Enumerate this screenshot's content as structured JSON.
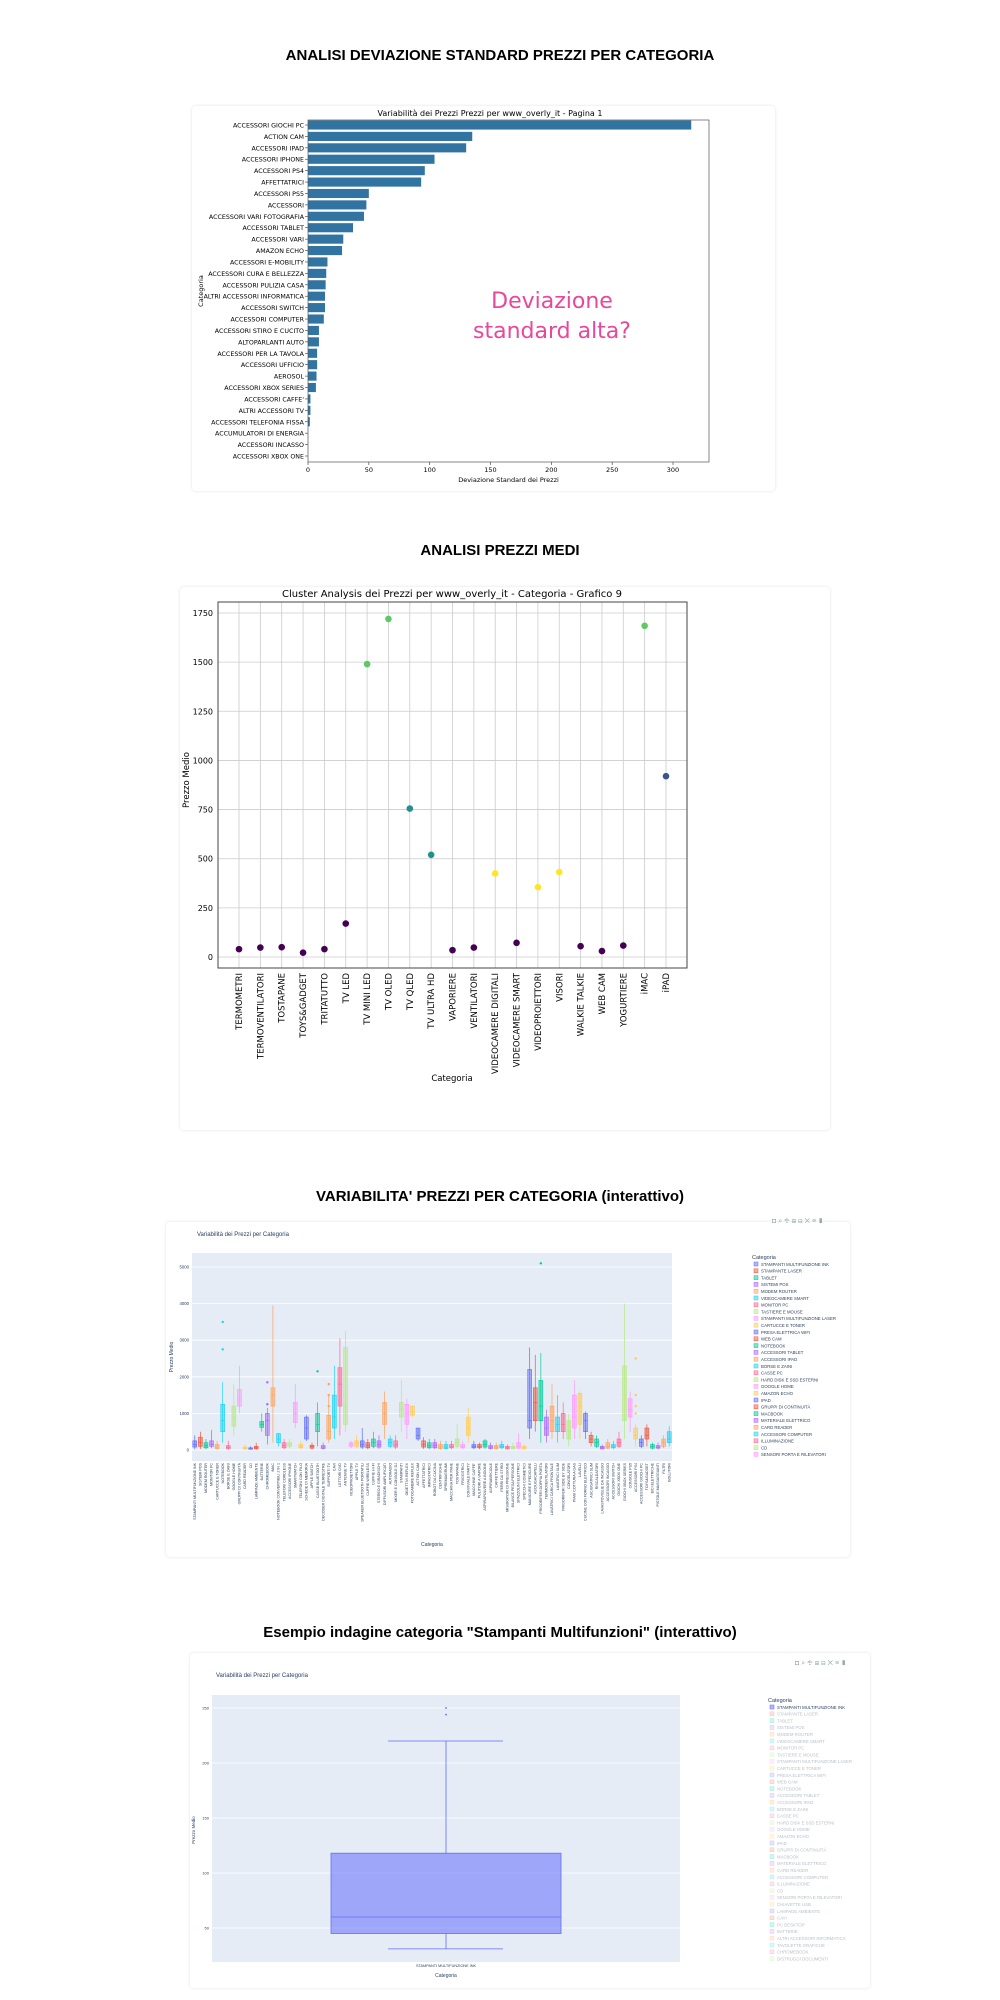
{
  "sections": [
    {
      "title": "ANALISI DEVIAZIONE STANDARD PREZZI PER CATEGORIA"
    },
    {
      "title": "ANALISI PREZZI MEDI"
    },
    {
      "title": "VARIABILITA' PREZZI PER CATEGORIA (interattivo)"
    },
    {
      "title": "Esempio indagine categoria \"Stampanti Multifunzioni\" (interattivo)"
    }
  ],
  "toolbar_icons": [
    "camera-icon",
    "zoom-icon",
    "pan-icon",
    "zoom-in-icon",
    "zoom-out-icon",
    "autoscale-icon",
    "reset-icon",
    "plotly-logo-icon"
  ],
  "chart_data": [
    {
      "type": "bar",
      "orientation": "horizontal",
      "title": "Variabilità dei Prezzi Prezzi per www_overly_it - Pagina 1",
      "xlabel": "Deviazione Standard dei Prezzi",
      "ylabel": "Categoria",
      "xlim": [
        0,
        330
      ],
      "xticks": [
        0,
        50,
        100,
        150,
        200,
        250,
        300
      ],
      "color": "#3274a1",
      "annotation": [
        "Deviazione",
        "standard alta?"
      ],
      "annotation_color": "#e8479a",
      "categories": [
        "ACCESSORI GIOCHI PC",
        "ACTION CAM",
        "ACCESSORI IPAD",
        "ACCESSORI IPHONE",
        "ACCESSORI PS4",
        "AFFETTATRICI",
        "ACCESSORI PS5",
        "ACCESSORI",
        "ACCESSORI VARI FOTOGRAFIA",
        "ACCESSORI TABLET",
        "ACCESSORI VARI",
        "AMAZON ECHO",
        "ACCESSORI E-MOBILITY",
        "ACCESSORI CURA E BELLEZZA",
        "ACCESSORI PULIZIA CASA",
        "ALTRI ACCESSORI INFORMATICA",
        "ACCESSORI SWITCH",
        "ACCESSORI COMPUTER",
        "ACCESSORI STIRO E CUCITO",
        "ALTOPARLANTI AUTO",
        "ACCESSORI PER LA TAVOLA",
        "ACCESSORI UFFICIO",
        "AEROSOL",
        "ACCESSORI XBOX SERIES",
        "ACCESSORI CAFFE'",
        "ALTRI ACCESSORI TV",
        "ACCESSORI TELEFONIA FISSA",
        "ACCUMULATORI DI ENERGIA",
        "ACCESSORI INCASSO",
        "ACCESSORI XBOX ONE"
      ],
      "values": [
        315,
        135,
        130,
        104,
        96,
        93,
        50,
        48,
        46,
        37,
        29,
        28,
        16,
        15,
        14.5,
        14,
        14,
        13,
        9,
        9,
        7.5,
        7.5,
        7,
        6.5,
        2,
        2,
        1.5,
        0,
        0,
        0
      ],
      "grid": false
    },
    {
      "type": "scatter",
      "title": "Cluster Analysis dei Prezzi per www_overly_it - Categoria - Grafico 9",
      "xlabel": "Categoria",
      "ylabel": "Prezzo Medio",
      "ylim": [
        -50,
        1800
      ],
      "yticks": [
        0,
        250,
        500,
        750,
        1000,
        1250,
        1500,
        1750
      ],
      "grid": true,
      "cluster_colors": [
        "#440154",
        "#3b528b",
        "#21918c",
        "#5ec962",
        "#fde725"
      ],
      "categories": [
        "TERMOMETRI",
        "TERMOVENTILATORI",
        "TOSTAPANE",
        "TOYS&GADGET",
        "TRITATUTTO",
        "TV LED",
        "TV MINI LED",
        "TV OLED",
        "TV QLED",
        "TV ULTRA HD",
        "VAPORIERE",
        "VENTILATORI",
        "VIDEOCAMERE DIGITALI",
        "VIDEOCAMERE SMART",
        "VIDEOPROIETTORI",
        "VISORI",
        "WALKIE TALKIE",
        "WEB CAM",
        "YOGURTIERE",
        "iMAC",
        "iPAD"
      ],
      "values": [
        40,
        48,
        50,
        22,
        40,
        170,
        1490,
        1720,
        755,
        520,
        35,
        48,
        425,
        72,
        355,
        432,
        55,
        30,
        58,
        1685,
        920
      ],
      "clusters": [
        0,
        0,
        0,
        0,
        0,
        0,
        3,
        3,
        2,
        2,
        0,
        0,
        4,
        0,
        4,
        4,
        0,
        0,
        0,
        3,
        1
      ]
    },
    {
      "type": "box",
      "title": "Variabilità dei Prezzi per Categoria",
      "xlabel": "Categoria",
      "ylabel": "Prezzo Medio",
      "ylim": [
        -300,
        5300
      ],
      "yticks": [
        0,
        1000,
        2000,
        3000,
        4000,
        5000
      ],
      "grid": true,
      "legend_title": "Categoria",
      "legend_placement": "right",
      "palette": [
        "#636efa",
        "#EF553B",
        "#00cc96",
        "#ab63fa",
        "#FFA15A",
        "#19d3f3",
        "#FF6692",
        "#B6E880",
        "#FF97FF",
        "#FECB52"
      ],
      "legend": [
        "STAMPANTI MULTIFUNZIONE INK",
        "STAMPANTE LASER",
        "TABLET",
        "SISTEMI POS",
        "MODEM ROUTER",
        "VIDEOCAMERE SMART",
        "MONITOR PC",
        "TASTIERE E MOUSE",
        "STAMPANTI MULTIFUNZIONE LASER",
        "CARTUCCE E TONER",
        "PRESA ELETTRICA WIFI",
        "WEB CAM",
        "NOTEBOOK",
        "ACCESSORI TABLET",
        "ACCESSORI IPAD",
        "BORSE E ZAINI",
        "CASSE PC",
        "HARD DISK E SSD ESTERNI",
        "GOOGLE HOME",
        "AMAZON ECHO",
        "IPAD",
        "GRUPPI DI CONTINUITÀ",
        "MACBOOK",
        "MATERIALE ELETTRICO",
        "CARD READER",
        "ACCESSORI COMPUTER",
        "ILLUMINAZIONE",
        "CD",
        "SENSORI PORTA E RILEVATORI"
      ],
      "categories": [
        "STAMPANTI MULTIFUNZIONE INK",
        "SISTEMI POS",
        "MODEM ROUTER",
        "MONITOR PC",
        "CARTUCCE E TONER",
        "NOTEBOOK",
        "BORSE E ZAINI",
        "GOOGLE HOME",
        "GRUPPI DI CONTINUITÀ",
        "CARD READER",
        "CD",
        "LAMPADE AMBIENTE",
        "BATTERIE",
        "CHROMEBOOK",
        "iMAC",
        "NOTEBOOK CONVERTIBILI 2 IN 1",
        "TELEFONI CORDLESS",
        "ACCESSORI IPHONE",
        "SMARTWATCH",
        "TELEFONI CON FILO",
        "SCHEDE DI MEMORIA",
        "APPLE WATCH",
        "CASSE BLUETOOTH",
        "DECODER DIGITALE TERRESTRE",
        "SUPPORTI TV",
        "CAVI",
        "LETTORI DVD",
        "ANTENNE TV",
        "VIDEOPROIETTORI",
        "APPLE TV",
        "SPEAKER BLUETOOTH PORTATILI",
        "CUFFIE WIRELESS",
        "CUFFIE HI-FI",
        "STEREO E GIRADISCHI",
        "DIFFUSORI AMPLIFICATI",
        "AUTORADIO",
        "MIXER E CONSOLE DJ",
        "STAMPANTI",
        "OBIETTIVI REFLEX",
        "FOTOCAMERE REFLEX",
        "ACTION CAM",
        "AFFETTATRICI",
        "IMPASTATRICI",
        "ROBOT DA CUCINA",
        "CENTRIFUGHE",
        "SPREMIAGRUMI",
        "MACCHINA PER PANE",
        "TOSTAPANE",
        "FRIGGITRICI",
        "CONVIVIALE PARTY",
        "MACCHINE CAFFE'",
        "PULITORI A VAPORE",
        "ASPIRAPOLVERE A BIDONE",
        "ASPIRABRICIOLE",
        "CAFFETTIERE",
        "FERRI DA STIRO",
        "MISURATORI DI PRESSIONE",
        "BILANCE PESA PERSONE",
        "SPAZZOLINI ELETTRICI",
        "SPECCHI COSMETICI",
        "MANICURE E PEDICURE",
        "ASCIUGACAPELLI",
        "FRIGORIFERI DOPPIA PORTA",
        "TERMOVENTILATORI",
        "LAVATRICI CARICA FRONTALE",
        "LAVATRICI SLIM",
        "FRIGORIFERI SIDE BY SIDE",
        "CONGELATORI",
        "PIANI COTTURA A GAS",
        "LAVELLI",
        "CUCINE CON FORNO ELETTRICO",
        "ASCIUGATRICI SLIM",
        "RISCALDATORI",
        "LAVASTOVIGLIE DA INCASSO",
        "ACCESSORI INCASSO",
        "ACCESSORI SWITCH",
        "GIOCHI XBOX ONE",
        "GIOCHI XBOX SERIES",
        "CONSOLE PS5",
        "ACCESSORI PS4",
        "ACCESSORI GIOCHI PC",
        "TOYS&GADGET",
        "BICI ELETTRICHE",
        "PISTOLE MASSAGGIANTI",
        "FILTRI",
        "BOLLITORI"
      ],
      "boxes": [
        [
          20,
          80,
          150,
          250,
          400
        ],
        [
          30,
          100,
          200,
          350,
          500
        ],
        [
          20,
          60,
          120,
          200,
          300
        ],
        [
          50,
          100,
          150,
          250,
          550
        ],
        [
          10,
          40,
          80,
          150,
          250
        ],
        [
          200,
          500,
          800,
          1250,
          1850
        ],
        [
          10,
          40,
          70,
          120,
          250
        ],
        [
          400,
          650,
          900,
          1200,
          1800
        ],
        [
          1000,
          1200,
          1400,
          1650,
          2300
        ],
        [
          10,
          30,
          50,
          80,
          150
        ],
        [
          10,
          20,
          40,
          60,
          100
        ],
        [
          10,
          30,
          60,
          100,
          200
        ],
        [
          500,
          620,
          700,
          780,
          1000
        ],
        [
          150,
          400,
          800,
          1000,
          1150
        ],
        [
          200,
          1200,
          1500,
          1700,
          3950
        ],
        [
          100,
          200,
          300,
          450,
          450
        ],
        [
          20,
          60,
          120,
          200,
          300
        ],
        [
          50,
          100,
          150,
          200,
          300
        ],
        [
          600,
          750,
          1000,
          1300,
          1800
        ],
        [
          20,
          60,
          100,
          150,
          250
        ],
        [
          250,
          300,
          600,
          900,
          950
        ],
        [
          20,
          50,
          90,
          130,
          200
        ],
        [
          100,
          500,
          700,
          1000,
          1300
        ],
        [
          10,
          40,
          80,
          120,
          200
        ],
        [
          200,
          300,
          500,
          950,
          1500
        ],
        [
          300,
          600,
          900,
          1500,
          2300
        ],
        [
          400,
          1200,
          1800,
          2250,
          3050
        ],
        [
          500,
          700,
          1200,
          2800,
          3250
        ],
        [
          50,
          100,
          150,
          200,
          250
        ],
        [
          50,
          100,
          180,
          250,
          400
        ],
        [
          30,
          80,
          150,
          250,
          600
        ],
        [
          20,
          60,
          120,
          200,
          300
        ],
        [
          50,
          100,
          200,
          300,
          500
        ],
        [
          30,
          80,
          150,
          250,
          400
        ],
        [
          300,
          700,
          1000,
          1300,
          1600
        ],
        [
          50,
          100,
          200,
          300,
          400
        ],
        [
          20,
          80,
          150,
          250,
          400
        ],
        [
          500,
          900,
          1100,
          1300,
          1900
        ],
        [
          300,
          700,
          1000,
          1250,
          1400
        ],
        [
          900,
          950,
          1050,
          1200,
          1200
        ],
        [
          250,
          300,
          400,
          600,
          600
        ],
        [
          30,
          80,
          150,
          250,
          350
        ],
        [
          20,
          60,
          120,
          200,
          300
        ],
        [
          20,
          60,
          120,
          200,
          300
        ],
        [
          10,
          40,
          80,
          150,
          250
        ],
        [
          10,
          40,
          80,
          150,
          250
        ],
        [
          20,
          60,
          100,
          150,
          250
        ],
        [
          50,
          100,
          200,
          300,
          700
        ],
        [
          20,
          60,
          100,
          150,
          250
        ],
        [
          200,
          400,
          600,
          900,
          1150
        ],
        [
          20,
          60,
          100,
          150,
          250
        ],
        [
          20,
          60,
          100,
          150,
          200
        ],
        [
          30,
          80,
          150,
          250,
          300
        ],
        [
          10,
          40,
          80,
          120,
          200
        ],
        [
          10,
          40,
          80,
          120,
          200
        ],
        [
          20,
          60,
          100,
          150,
          250
        ],
        [
          10,
          30,
          60,
          100,
          150
        ],
        [
          10,
          30,
          60,
          100,
          200
        ],
        [
          20,
          50,
          100,
          200,
          450
        ],
        [
          10,
          30,
          60,
          100,
          150
        ],
        [
          300,
          600,
          800,
          2200,
          2800
        ],
        [
          500,
          800,
          1300,
          1700,
          2600
        ],
        [
          200,
          800,
          1200,
          1900,
          2650
        ],
        [
          200,
          400,
          600,
          900,
          1100
        ],
        [
          300,
          500,
          800,
          1200,
          1800
        ],
        [
          200,
          500,
          700,
          900,
          1500
        ],
        [
          300,
          500,
          700,
          1000,
          1300
        ],
        [
          100,
          300,
          500,
          800,
          1000
        ],
        [
          300,
          600,
          900,
          1500,
          1900
        ],
        [
          300,
          700,
          1200,
          1550,
          1600
        ],
        [
          300,
          500,
          800,
          1000,
          1050
        ],
        [
          100,
          200,
          300,
          400,
          500
        ],
        [
          50,
          100,
          200,
          300,
          400
        ],
        [
          10,
          30,
          60,
          100,
          150
        ],
        [
          20,
          50,
          100,
          200,
          300
        ],
        [
          20,
          60,
          100,
          150,
          250
        ],
        [
          50,
          100,
          200,
          300,
          500
        ],
        [
          300,
          800,
          1500,
          2300,
          4000
        ],
        [
          500,
          900,
          1100,
          1400,
          1600
        ],
        [
          100,
          300,
          400,
          600,
          700
        ],
        [
          50,
          100,
          200,
          300,
          400
        ],
        [
          100,
          300,
          400,
          600,
          700
        ],
        [
          20,
          50,
          100,
          150,
          200
        ],
        [
          20,
          50,
          80,
          120,
          200
        ],
        [
          50,
          100,
          200,
          300,
          400
        ],
        [
          100,
          200,
          300,
          500,
          650
        ]
      ],
      "outliers": {
        "5": [
          2750,
          3500
        ],
        "13": [
          1250,
          1850
        ],
        "24": [
          1200,
          1500,
          1800
        ],
        "22": [
          2150
        ],
        "62": [
          5100
        ],
        "79": [
          2500,
          1500,
          1200,
          1000
        ]
      }
    },
    {
      "type": "box",
      "title": "Variabilità dei Prezzi per Categoria",
      "xlabel": "Categoria",
      "ylabel": "Prezzo Medio",
      "ylim": [
        20,
        262
      ],
      "yticks": [
        50,
        100,
        150,
        200,
        250
      ],
      "grid": true,
      "category": "STAMPANTI MULTIFUNZIONE INK",
      "box": {
        "min": 31,
        "q1": 45,
        "median": 60,
        "q3": 118,
        "max": 220
      },
      "outliers": [
        250,
        244
      ],
      "color": "#636efa",
      "legend_title": "Categoria",
      "legend_placement": "right",
      "legend_active": "STAMPANTI MULTIFUNZIONE INK",
      "legend": [
        "STAMPANTI MULTIFUNZIONE INK",
        "STAMPANTE LASER",
        "TABLET",
        "SISTEMI POS",
        "MODEM ROUTER",
        "VIDEOCAMERE SMART",
        "MONITOR PC",
        "TASTIERE E MOUSE",
        "STAMPANTI MULTIFUNZIONE LASER",
        "CARTUCCE E TONER",
        "PRESA ELETTRICA WIFI",
        "WEB CAM",
        "NOTEBOOK",
        "ACCESSORI TABLET",
        "ACCESSORI IPAD",
        "BORSE E ZAINI",
        "CASSE PC",
        "HARD DISK E SSD ESTERNI",
        "GOOGLE HOME",
        "AMAZON ECHO",
        "IPAD",
        "GRUPPI DI CONTINUITÀ",
        "MACBOOK",
        "MATERIALE ELETTRICO",
        "CARD READER",
        "ACCESSORI COMPUTER",
        "ILLUMINAZIONE",
        "CD",
        "SENSORI PORTA E RILEVATORI",
        "CHIAVETTE USB",
        "LAMPADE AMBIENTE",
        "CAVI",
        "PC DESKTOP",
        "BATTERIE",
        "ALTRI ACCESSORI INFORMATICA",
        "TAVOLETTE GRAFICHE",
        "CHROMEBOOK",
        "DISTRUGGI DOCUMENTI"
      ]
    }
  ]
}
